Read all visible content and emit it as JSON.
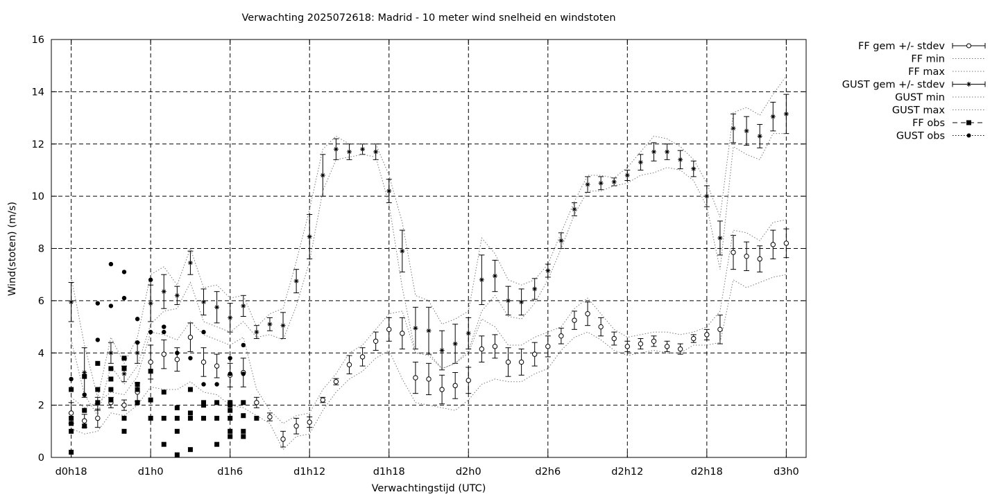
{
  "chart_data": {
    "type": "scatter",
    "title": "Verwachting 2025072618: Madrid - 10 meter wind snelheid en windstoten",
    "xlabel": "Verwachtingstijd (UTC)",
    "ylabel": "Wind(stoten) (m/s)",
    "xlim": [
      16.5,
      73.5
    ],
    "ylim": [
      0,
      16
    ],
    "grid": true,
    "legend_position": "outside-top-right",
    "x_ticks": [
      {
        "x": 18,
        "label": "d0h18"
      },
      {
        "x": 24,
        "label": "d1h0"
      },
      {
        "x": 30,
        "label": "d1h6"
      },
      {
        "x": 36,
        "label": "d1h12"
      },
      {
        "x": 42,
        "label": "d1h18"
      },
      {
        "x": 48,
        "label": "d2h0"
      },
      {
        "x": 54,
        "label": "d2h6"
      },
      {
        "x": 60,
        "label": "d2h12"
      },
      {
        "x": 66,
        "label": "d2h18"
      },
      {
        "x": 72,
        "label": "d3h0"
      }
    ],
    "y_ticks": [
      0,
      2,
      4,
      6,
      8,
      10,
      12,
      14,
      16
    ],
    "x": [
      18,
      19,
      20,
      21,
      22,
      23,
      24,
      25,
      26,
      27,
      28,
      29,
      30,
      31,
      32,
      33,
      34,
      35,
      36,
      37,
      38,
      39,
      40,
      41,
      42,
      43,
      44,
      45,
      46,
      47,
      48,
      49,
      50,
      51,
      52,
      53,
      54,
      55,
      56,
      57,
      58,
      59,
      60,
      61,
      62,
      63,
      64,
      65,
      66,
      67,
      68,
      69,
      70,
      71,
      72
    ],
    "series": [
      {
        "name": "FF gem +/- stdev",
        "style": "errorbar-circle",
        "values": [
          1.7,
          1.4,
          1.5,
          2.1,
          2.0,
          2.5,
          3.65,
          3.95,
          3.75,
          4.6,
          3.65,
          3.5,
          3.15,
          3.25,
          2.1,
          1.55,
          0.7,
          1.2,
          1.35,
          2.2,
          2.9,
          3.55,
          3.85,
          4.45,
          4.9,
          4.75,
          3.05,
          3.0,
          2.6,
          2.75,
          2.95,
          4.15,
          4.25,
          3.65,
          3.65,
          3.95,
          4.25,
          4.65,
          5.25,
          5.5,
          5.0,
          4.55,
          4.25,
          4.35,
          4.45,
          4.25,
          4.15,
          4.55,
          4.7,
          4.9,
          7.85,
          7.7,
          7.6,
          8.15,
          8.2
        ],
        "stdev": [
          0.4,
          0.25,
          0.35,
          0.2,
          0.2,
          0.35,
          0.65,
          0.55,
          0.45,
          0.55,
          0.55,
          0.45,
          0.45,
          0.55,
          0.2,
          0.15,
          0.3,
          0.3,
          0.2,
          0.1,
          0.12,
          0.35,
          0.35,
          0.35,
          0.45,
          0.6,
          0.6,
          0.6,
          0.55,
          0.5,
          0.5,
          0.5,
          0.45,
          0.55,
          0.5,
          0.45,
          0.4,
          0.3,
          0.35,
          0.45,
          0.35,
          0.25,
          0.2,
          0.2,
          0.2,
          0.2,
          0.2,
          0.15,
          0.2,
          0.55,
          0.65,
          0.55,
          0.5,
          0.55,
          0.55
        ]
      },
      {
        "name": "FF min",
        "style": "dotted",
        "values": [
          1.1,
          0.9,
          1.0,
          1.7,
          1.6,
          2.0,
          2.7,
          2.6,
          2.6,
          2.9,
          2.5,
          2.4,
          2.0,
          1.9,
          1.6,
          1.3,
          0.3,
          0.8,
          0.9,
          1.8,
          2.5,
          3.0,
          3.3,
          3.8,
          4.1,
          3.0,
          2.1,
          2.0,
          1.9,
          1.8,
          2.2,
          2.8,
          3.0,
          2.9,
          2.9,
          3.2,
          3.4,
          4.1,
          4.6,
          4.8,
          4.5,
          4.1,
          3.9,
          4.0,
          4.1,
          4.0,
          4.0,
          4.3,
          4.3,
          4.4,
          6.8,
          6.5,
          6.7,
          6.9,
          7.0
        ]
      },
      {
        "name": "FF max",
        "style": "dotted",
        "values": [
          2.3,
          1.9,
          2.1,
          2.5,
          2.4,
          3.1,
          4.8,
          4.7,
          4.5,
          5.2,
          4.7,
          4.5,
          4.3,
          4.6,
          2.6,
          1.8,
          1.3,
          1.6,
          1.7,
          2.6,
          3.2,
          4.0,
          4.3,
          4.9,
          5.5,
          5.6,
          4.0,
          4.0,
          3.4,
          3.6,
          4.0,
          5.3,
          5.0,
          4.3,
          4.3,
          4.6,
          4.8,
          5.0,
          5.7,
          6.1,
          5.5,
          4.9,
          4.6,
          4.7,
          4.8,
          4.8,
          4.7,
          4.8,
          5.0,
          5.6,
          8.7,
          8.6,
          8.3,
          9.0,
          9.1
        ]
      },
      {
        "name": "GUST gem +/- stdev",
        "style": "errorbar-star",
        "values": [
          5.95,
          3.25,
          2.05,
          4.0,
          3.2,
          4.0,
          5.9,
          6.35,
          6.2,
          7.45,
          5.95,
          5.75,
          5.35,
          5.8,
          4.8,
          5.1,
          5.05,
          6.75,
          8.45,
          10.8,
          11.8,
          11.7,
          11.8,
          11.7,
          10.2,
          7.9,
          4.95,
          4.85,
          4.1,
          4.35,
          4.75,
          6.8,
          6.95,
          6.0,
          5.95,
          6.45,
          7.15,
          8.3,
          9.5,
          10.45,
          10.5,
          10.55,
          10.8,
          11.3,
          11.7,
          11.7,
          11.4,
          11.05,
          10.0,
          8.4,
          12.6,
          12.5,
          12.3,
          13.05,
          13.15
        ],
        "stdev": [
          0.75,
          0.95,
          0.25,
          0.4,
          0.3,
          0.4,
          0.7,
          0.65,
          0.35,
          0.45,
          0.5,
          0.6,
          0.55,
          0.4,
          0.25,
          0.25,
          0.5,
          0.45,
          0.85,
          0.8,
          0.4,
          0.3,
          0.2,
          0.3,
          0.45,
          0.8,
          0.8,
          0.9,
          0.75,
          0.75,
          0.6,
          0.95,
          0.6,
          0.55,
          0.5,
          0.4,
          0.25,
          0.3,
          0.25,
          0.3,
          0.25,
          0.15,
          0.2,
          0.3,
          0.35,
          0.3,
          0.35,
          0.3,
          0.4,
          0.65,
          0.55,
          0.55,
          0.45,
          0.55,
          0.75
        ]
      },
      {
        "name": "GUST min",
        "style": "dotted",
        "values": [
          4.5,
          2.4,
          1.6,
          3.5,
          2.8,
          3.5,
          5.1,
          5.6,
          5.7,
          6.7,
          5.2,
          5.0,
          4.8,
          5.2,
          4.6,
          4.7,
          4.5,
          5.8,
          7.5,
          10.2,
          11.4,
          11.5,
          11.6,
          11.5,
          9.7,
          6.5,
          4.0,
          3.9,
          3.4,
          3.6,
          4.1,
          5.6,
          6.2,
          5.4,
          5.3,
          5.9,
          6.8,
          8.0,
          9.3,
          10.2,
          10.2,
          10.4,
          10.5,
          10.8,
          10.9,
          11.1,
          11.0,
          10.6,
          9.6,
          7.2,
          11.9,
          11.6,
          11.4,
          12.4,
          12.4
        ]
      },
      {
        "name": "GUST max",
        "style": "dotted",
        "values": [
          6.9,
          4.3,
          2.3,
          4.6,
          3.6,
          4.6,
          7.0,
          7.3,
          6.6,
          8.0,
          6.5,
          6.6,
          6.1,
          6.2,
          5.0,
          5.5,
          5.7,
          7.5,
          9.5,
          11.8,
          12.3,
          12.0,
          12.0,
          12.0,
          10.8,
          9.0,
          6.2,
          6.0,
          5.1,
          5.3,
          5.6,
          8.4,
          7.8,
          6.8,
          6.6,
          6.8,
          7.4,
          8.6,
          9.8,
          10.8,
          10.8,
          10.7,
          11.1,
          11.7,
          12.3,
          12.2,
          11.9,
          11.4,
          10.5,
          9.2,
          13.2,
          13.4,
          13.1,
          13.9,
          14.6
        ]
      }
    ],
    "obs": [
      {
        "name": "FF obs",
        "style": "square",
        "points": [
          [
            18,
            0.2
          ],
          [
            18,
            1.0
          ],
          [
            18,
            1.3
          ],
          [
            18,
            1.5
          ],
          [
            18,
            2.6
          ],
          [
            19,
            1.2
          ],
          [
            19,
            1.8
          ],
          [
            19,
            3.1
          ],
          [
            20,
            2.1
          ],
          [
            20,
            2.6
          ],
          [
            20,
            3.6
          ],
          [
            21,
            2.2
          ],
          [
            21,
            2.6
          ],
          [
            21,
            3.0
          ],
          [
            21,
            3.4
          ],
          [
            22,
            1.0
          ],
          [
            22,
            1.5
          ],
          [
            22,
            3.4
          ],
          [
            22,
            3.8
          ],
          [
            23,
            2.1
          ],
          [
            23,
            2.6
          ],
          [
            23,
            2.8
          ],
          [
            24,
            1.5
          ],
          [
            24,
            2.2
          ],
          [
            24,
            3.3
          ],
          [
            25,
            0.5
          ],
          [
            25,
            1.5
          ],
          [
            25,
            2.5
          ],
          [
            26,
            0.1
          ],
          [
            26,
            1.0
          ],
          [
            26,
            1.5
          ],
          [
            26,
            1.9
          ],
          [
            27,
            0.3
          ],
          [
            27,
            1.5
          ],
          [
            27,
            1.7
          ],
          [
            27,
            2.6
          ],
          [
            28,
            1.5
          ],
          [
            28,
            2.0
          ],
          [
            28,
            2.1
          ],
          [
            29,
            0.5
          ],
          [
            29,
            1.5
          ],
          [
            29,
            2.1
          ],
          [
            30,
            0.8
          ],
          [
            30,
            1.0
          ],
          [
            30,
            1.5
          ],
          [
            30,
            1.8
          ],
          [
            30,
            2.0
          ],
          [
            30,
            2.1
          ],
          [
            31,
            0.8
          ],
          [
            31,
            1.0
          ],
          [
            31,
            1.6
          ],
          [
            31,
            2.1
          ],
          [
            32,
            1.5
          ]
        ]
      },
      {
        "name": "GUST obs",
        "style": "dot",
        "points": [
          [
            18,
            3.0
          ],
          [
            19,
            2.4
          ],
          [
            20,
            4.5
          ],
          [
            20,
            5.9
          ],
          [
            21,
            5.8
          ],
          [
            21,
            7.4
          ],
          [
            22,
            6.1
          ],
          [
            22,
            7.1
          ],
          [
            23,
            4.4
          ],
          [
            23,
            5.3
          ],
          [
            24,
            4.8
          ],
          [
            24,
            6.8
          ],
          [
            25,
            4.8
          ],
          [
            25,
            5.0
          ],
          [
            26,
            4.0
          ],
          [
            27,
            3.8
          ],
          [
            28,
            2.8
          ],
          [
            28,
            4.8
          ],
          [
            29,
            2.8
          ],
          [
            30,
            3.2
          ],
          [
            30,
            3.8
          ],
          [
            31,
            3.2
          ],
          [
            31,
            4.3
          ]
        ]
      }
    ]
  }
}
